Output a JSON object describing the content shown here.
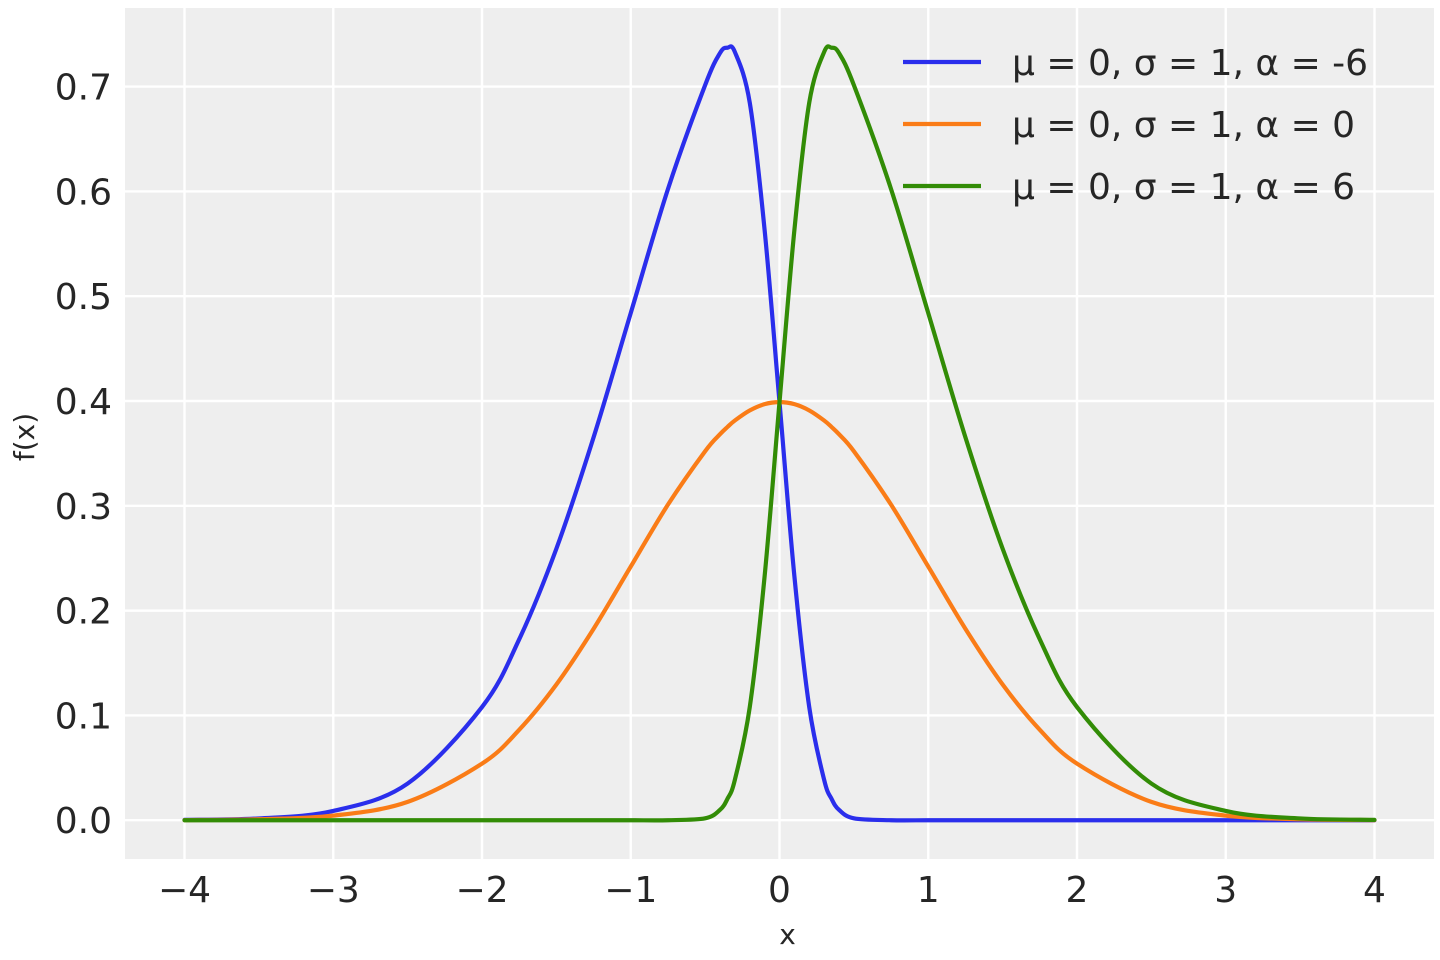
{
  "chart_data": {
    "type": "line",
    "title": "",
    "xlabel": "x",
    "ylabel": "f(x)",
    "xlim": [
      -4.4,
      4.4
    ],
    "ylim": [
      -0.037,
      0.775
    ],
    "xticks": [
      -4,
      -3,
      -2,
      -1,
      0,
      1,
      2,
      3,
      4
    ],
    "xtick_labels": [
      "−4",
      "−3",
      "−2",
      "−1",
      "0",
      "1",
      "2",
      "3",
      "4"
    ],
    "yticks": [
      0.0,
      0.1,
      0.2,
      0.3,
      0.4,
      0.5,
      0.6,
      0.7
    ],
    "ytick_labels": [
      "0.0",
      "0.1",
      "0.2",
      "0.3",
      "0.4",
      "0.5",
      "0.6",
      "0.7"
    ],
    "grid": true,
    "legend_position": "top-right",
    "x": [
      -4.0,
      -3.5,
      -3.0,
      -2.5,
      -2.0,
      -1.75,
      -1.5,
      -1.25,
      -1.0,
      -0.75,
      -0.5,
      -0.4,
      -0.35,
      -0.3,
      -0.2,
      -0.1,
      0.0,
      0.1,
      0.2,
      0.3,
      0.35,
      0.4,
      0.5,
      0.75,
      1.0,
      1.25,
      1.5,
      1.75,
      2.0,
      2.5,
      3.0,
      3.5,
      4.0
    ],
    "series": [
      {
        "name": "μ = 0, σ = 1, α = -6",
        "color": "#2a2eec",
        "values": [
          0.0003,
          0.0017,
          0.0089,
          0.035,
          0.108,
          0.1726,
          0.2591,
          0.3653,
          0.4839,
          0.6022,
          0.7014,
          0.732,
          0.7371,
          0.733,
          0.6847,
          0.563,
          0.3989,
          0.2329,
          0.1079,
          0.0386,
          0.0204,
          0.0099,
          0.0018,
          0.0,
          0.0,
          0.0,
          0.0,
          0.0,
          0.0,
          0.0,
          0.0,
          0.0,
          0.0
        ]
      },
      {
        "name": "μ = 0, σ = 1, α = 0",
        "color": "#fa7c17",
        "values": [
          0.0001,
          0.0009,
          0.0044,
          0.0175,
          0.054,
          0.0863,
          0.1295,
          0.1826,
          0.242,
          0.3011,
          0.3521,
          0.3683,
          0.3752,
          0.3814,
          0.391,
          0.397,
          0.3989,
          0.397,
          0.391,
          0.3814,
          0.3752,
          0.3683,
          0.3521,
          0.3011,
          0.242,
          0.1826,
          0.1295,
          0.0863,
          0.054,
          0.0175,
          0.0044,
          0.0009,
          0.0001
        ]
      },
      {
        "name": "μ = 0, σ = 1, α = 6",
        "color": "#328c06",
        "values": [
          0.0,
          0.0,
          0.0,
          0.0,
          0.0,
          0.0,
          0.0,
          0.0,
          0.0,
          0.0,
          0.0018,
          0.0099,
          0.0204,
          0.0386,
          0.1079,
          0.2329,
          0.3989,
          0.563,
          0.6847,
          0.733,
          0.7371,
          0.732,
          0.7014,
          0.6022,
          0.4839,
          0.3653,
          0.2591,
          0.1726,
          0.108,
          0.035,
          0.0089,
          0.0017,
          0.0003
        ]
      }
    ]
  }
}
